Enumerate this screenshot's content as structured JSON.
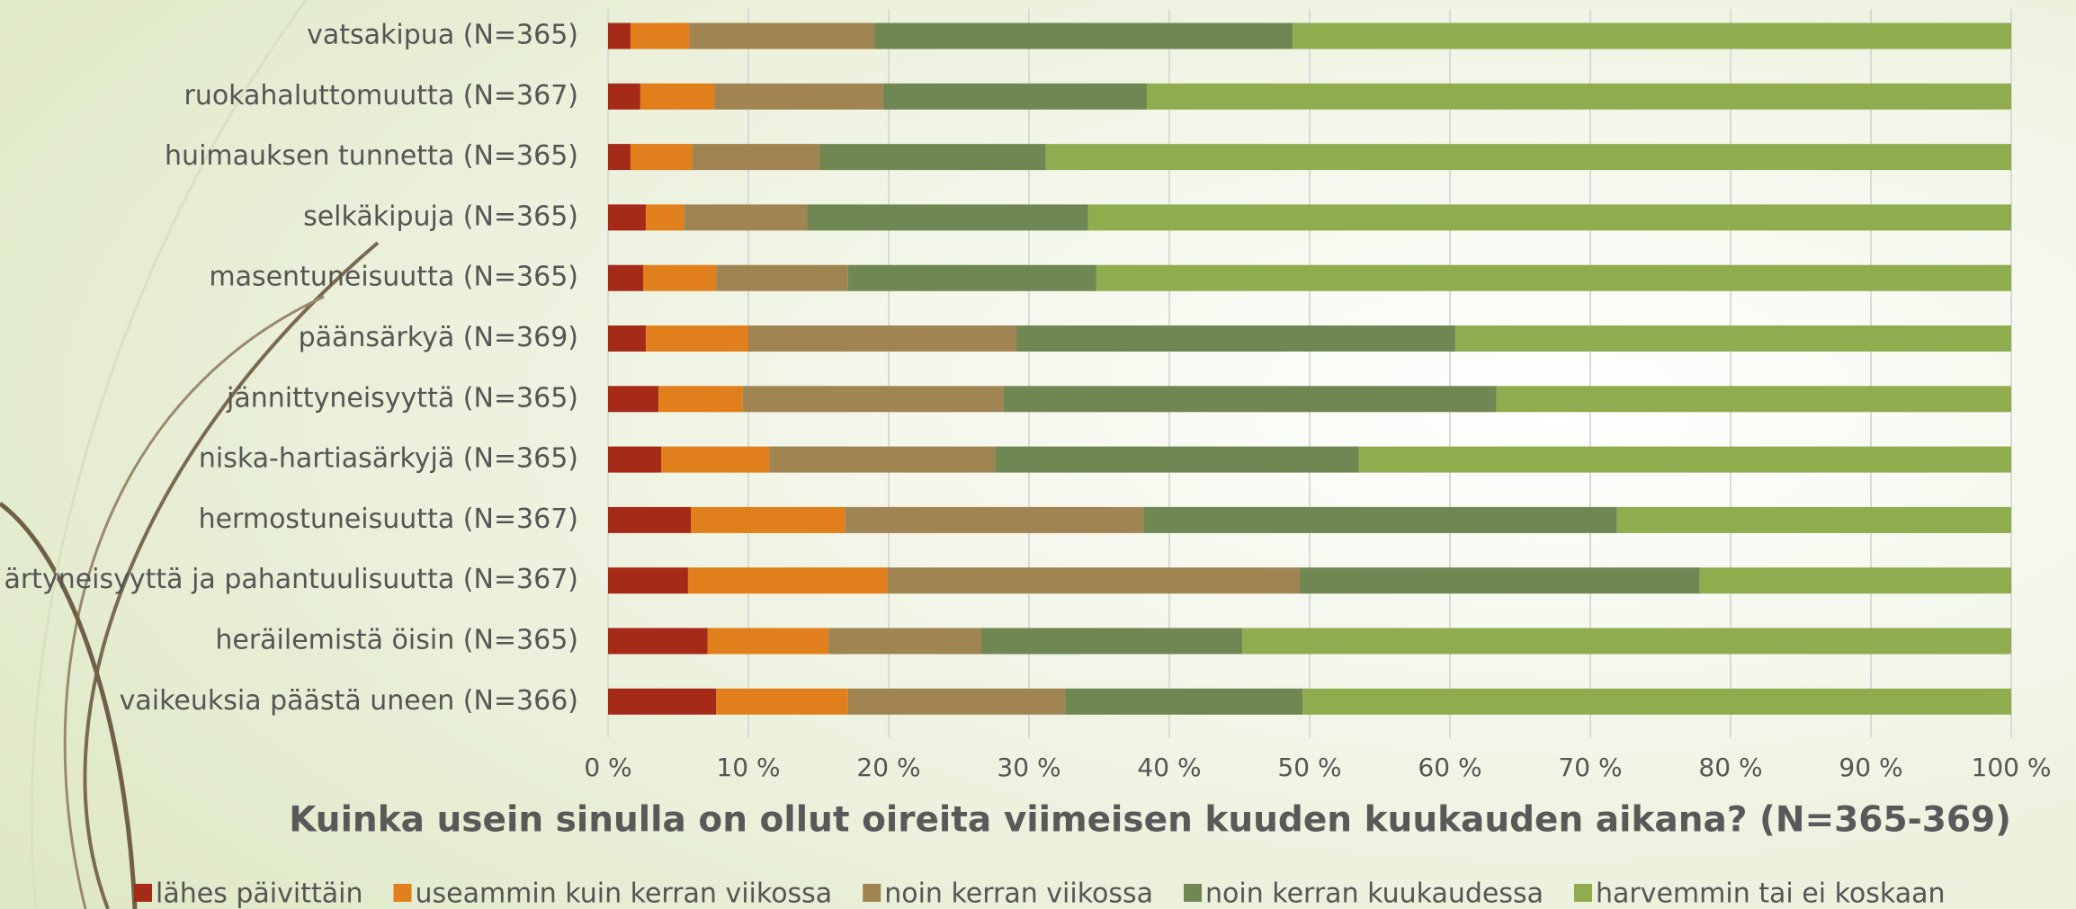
{
  "chart_data": {
    "type": "stacked_barh",
    "title": "Kuinka usein sinulla on ollut oireita viimeisen kuuden kuukauden aikana? (N=365-369)",
    "categories": [
      "vatsakipua (N=365)",
      "ruokahaluttomuutta (N=367)",
      "huimauksen tunnetta (N=365)",
      "selkäkipuja (N=365)",
      "masentuneisuutta (N=365)",
      "päänsärkyä (N=369)",
      "jännittyneisyyttä (N=365)",
      "niska-hartiasärkyjä (N=365)",
      "hermostuneisuutta (N=367)",
      "ärtyneisyyttä ja pahantuulisuutta (N=367)",
      "heräilemistä öisin (N=365)",
      "vaikeuksia päästä uneen (N=366)"
    ],
    "series": [
      {
        "name": "lähes päivittäin",
        "color": "#a52a17",
        "values": [
          1.6,
          2.3,
          1.6,
          2.7,
          2.5,
          2.7,
          3.6,
          3.8,
          5.9,
          5.7,
          7.1,
          7.7
        ]
      },
      {
        "name": "useammin kuin kerran viikossa",
        "color": "#e07f1c",
        "values": [
          4.2,
          5.3,
          4.4,
          2.7,
          5.2,
          7.3,
          6.0,
          7.7,
          11.0,
          14.2,
          8.6,
          9.4
        ]
      },
      {
        "name": "noin kerran viikossa",
        "color": "#a08452",
        "values": [
          13.2,
          12.0,
          9.1,
          8.8,
          9.4,
          19.1,
          18.6,
          16.1,
          21.3,
          29.4,
          10.9,
          15.5
        ]
      },
      {
        "name": "noin kerran kuukaudessa",
        "color": "#6f8752",
        "values": [
          29.8,
          18.8,
          16.1,
          20.0,
          17.7,
          31.3,
          35.1,
          25.9,
          33.7,
          28.5,
          18.6,
          16.9
        ]
      },
      {
        "name": "harvemmin tai ei koskaan",
        "color": "#8fac4f",
        "values": [
          51.2,
          61.6,
          68.8,
          65.8,
          65.2,
          39.6,
          36.7,
          46.5,
          28.1,
          22.2,
          54.8,
          50.5
        ]
      }
    ],
    "xlim": [
      0,
      100
    ],
    "xticks": [
      {
        "value": 0,
        "label": "0 %"
      },
      {
        "value": 10,
        "label": "10 %"
      },
      {
        "value": 20,
        "label": "20 %"
      },
      {
        "value": 30,
        "label": "30 %"
      },
      {
        "value": 40,
        "label": "40 %"
      },
      {
        "value": 50,
        "label": "50 %"
      },
      {
        "value": 60,
        "label": "60 %"
      },
      {
        "value": 70,
        "label": "70 %"
      },
      {
        "value": 80,
        "label": "80 %"
      },
      {
        "value": 90,
        "label": "90 %"
      },
      {
        "value": 100,
        "label": "100 %"
      }
    ],
    "grid": true,
    "legend": "bottom"
  }
}
